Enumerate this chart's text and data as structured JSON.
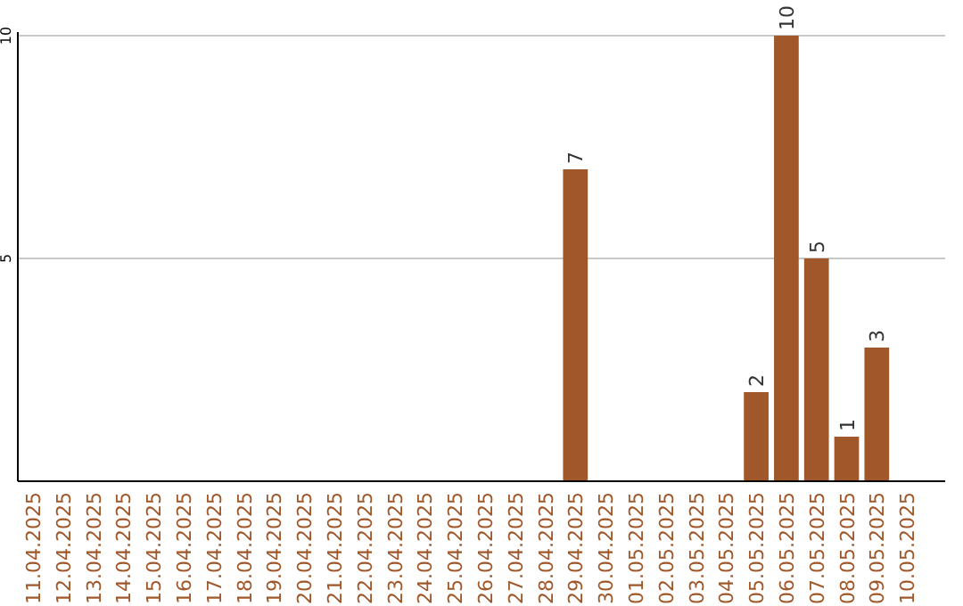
{
  "chart_data": {
    "type": "bar",
    "categories": [
      "11.04.2025",
      "12.04.2025",
      "13.04.2025",
      "14.04.2025",
      "15.04.2025",
      "16.04.2025",
      "17.04.2025",
      "18.04.2025",
      "19.04.2025",
      "20.04.2025",
      "21.04.2025",
      "22.04.2025",
      "23.04.2025",
      "24.04.2025",
      "25.04.2025",
      "26.04.2025",
      "27.04.2025",
      "28.04.2025",
      "29.04.2025",
      "30.04.2025",
      "01.05.2025",
      "02.05.2025",
      "03.05.2025",
      "04.05.2025",
      "05.05.2025",
      "06.05.2025",
      "07.05.2025",
      "08.05.2025",
      "09.05.2025",
      "10.05.2025"
    ],
    "values": [
      0,
      0,
      0,
      0,
      0,
      0,
      0,
      0,
      0,
      0,
      0,
      0,
      0,
      0,
      0,
      0,
      0,
      0,
      7,
      0,
      0,
      0,
      0,
      0,
      2,
      10,
      5,
      1,
      3,
      0
    ],
    "value_labels": [
      null,
      null,
      null,
      null,
      null,
      null,
      null,
      null,
      null,
      null,
      null,
      null,
      null,
      null,
      null,
      null,
      null,
      null,
      "7",
      null,
      null,
      null,
      null,
      null,
      "2",
      "10",
      "5",
      "1",
      "3",
      null
    ],
    "color": "#a0582a",
    "ylim": [
      0,
      10
    ],
    "yticks": [
      5,
      10
    ],
    "grid": "y"
  }
}
